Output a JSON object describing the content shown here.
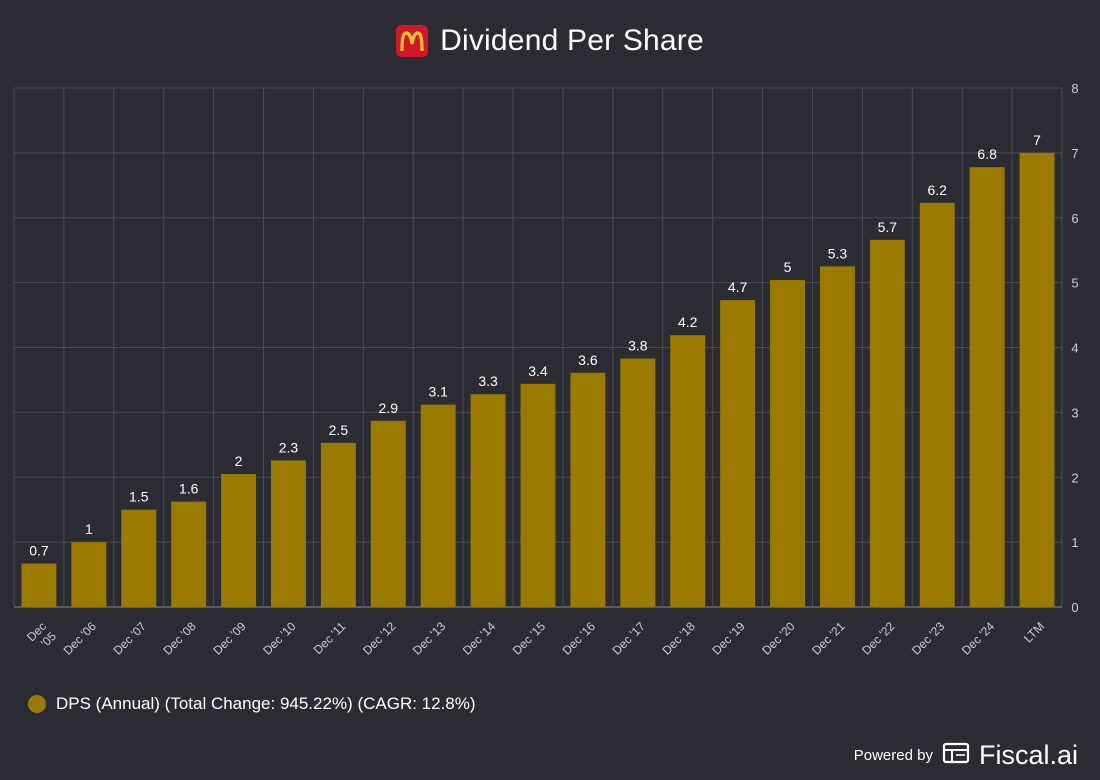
{
  "header": {
    "title": "Dividend Per Share",
    "logo_icon": "mcdonalds-logo-icon"
  },
  "legend": {
    "label": "DPS (Annual) (Total Change: 945.22%) (CAGR: 12.8%)",
    "color": "#9a7b00"
  },
  "footer": {
    "powered_label": "Powered by",
    "brand": "Fiscal.ai",
    "brand_icon": "fiscal-ai-icon"
  },
  "colors": {
    "background": "#2b2c33",
    "bar": "#9a7b00",
    "grid": "#4a4b53",
    "axis_text": "#cfd0d6"
  },
  "chart_data": {
    "type": "bar",
    "title": "Dividend Per Share",
    "categories": [
      "Dec '05",
      "Dec '06",
      "Dec '07",
      "Dec '08",
      "Dec '09",
      "Dec '10",
      "Dec '11",
      "Dec '12",
      "Dec '13",
      "Dec '14",
      "Dec '15",
      "Dec '16",
      "Dec '17",
      "Dec '18",
      "Dec '19",
      "Dec '20",
      "Dec '21",
      "Dec '22",
      "Dec '23",
      "Dec '24",
      "LTM"
    ],
    "values": [
      0.67,
      1.0,
      1.5,
      1.625,
      2.05,
      2.26,
      2.53,
      2.87,
      3.12,
      3.28,
      3.44,
      3.61,
      3.83,
      4.19,
      4.73,
      5.04,
      5.25,
      5.66,
      6.23,
      6.78,
      7.0
    ],
    "labels": [
      "0.7",
      "1",
      "1.5",
      "1.6",
      "2",
      "2.3",
      "2.5",
      "2.9",
      "3.1",
      "3.3",
      "3.4",
      "3.6",
      "3.8",
      "4.2",
      "4.7",
      "5",
      "5.3",
      "5.7",
      "6.2",
      "6.8",
      "7"
    ],
    "series_name": "DPS (Annual)",
    "ylim": [
      0,
      8
    ],
    "yticks": [
      "0",
      "1",
      "2",
      "3",
      "4",
      "5",
      "6",
      "7",
      "8"
    ],
    "y_axis_side": "right",
    "grid": true,
    "legend_position": "bottom-left"
  }
}
